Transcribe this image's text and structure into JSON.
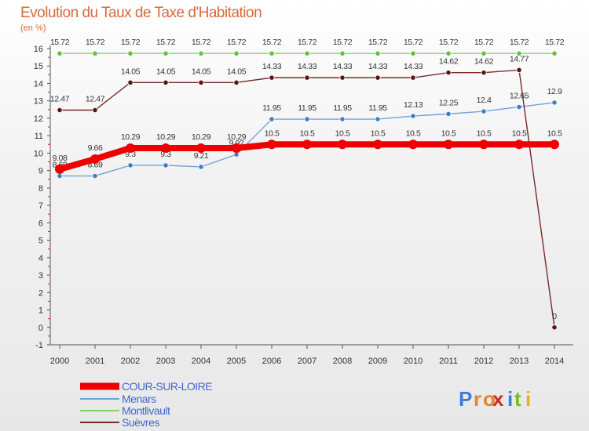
{
  "chart_data": {
    "type": "line",
    "title": "Evolution du Taux de Taxe d'Habitation",
    "unit_label": "(en %)",
    "xlabel": "",
    "ylabel": "",
    "categories": [
      "2000",
      "2001",
      "2002",
      "2003",
      "2004",
      "2005",
      "2006",
      "2007",
      "2008",
      "2009",
      "2010",
      "2011",
      "2012",
      "2013",
      "2014"
    ],
    "y_ticks": [
      "-1",
      "0",
      "1",
      "2",
      "3",
      "4",
      "5",
      "6",
      "7",
      "8",
      "9",
      "10",
      "11",
      "12",
      "13",
      "14",
      "15",
      "16"
    ],
    "ylim": [
      -1,
      16
    ],
    "series": [
      {
        "name": "COUR-SUR-LOIRE",
        "color": "#ee0000",
        "thick": true,
        "values": [
          9.08,
          9.66,
          10.29,
          10.29,
          10.29,
          10.29,
          10.5,
          10.5,
          10.5,
          10.5,
          10.5,
          10.5,
          10.5,
          10.5,
          10.5
        ],
        "labels": [
          "9.08",
          "9.66",
          "10.29",
          "10.29",
          "10.29",
          "10.29",
          "10.5",
          "10.5",
          "10.5",
          "10.5",
          "10.5",
          "10.5",
          "10.5",
          "10.5",
          "10.5"
        ]
      },
      {
        "name": "Menars",
        "color": "#6fa3d6",
        "marker": "#3c7fc4",
        "values": [
          8.69,
          8.69,
          9.3,
          9.3,
          9.21,
          9.92,
          11.95,
          11.95,
          11.95,
          11.95,
          12.13,
          12.25,
          12.4,
          12.65,
          12.9
        ],
        "labels": [
          "8.69",
          "8.69",
          "9.3",
          "9.3",
          "9.21",
          "9.92",
          "11.95",
          "11.95",
          "11.95",
          "11.95",
          "12.13",
          "12.25",
          "12.4",
          "12.65",
          "12.9"
        ]
      },
      {
        "name": "Montlivault",
        "color": "#88d060",
        "marker": "#66c040",
        "values": [
          15.72,
          15.72,
          15.72,
          15.72,
          15.72,
          15.72,
          15.72,
          15.72,
          15.72,
          15.72,
          15.72,
          15.72,
          15.72,
          15.72,
          15.72
        ],
        "labels": [
          "15.72",
          "15.72",
          "15.72",
          "15.72",
          "15.72",
          "15.72",
          "15.72",
          "15.72",
          "15.72",
          "15.72",
          "15.72",
          "15.72",
          "15.72",
          "15.72",
          "15.72"
        ]
      },
      {
        "name": "Suèvres",
        "color": "#7a2a2a",
        "marker": "#5a1414",
        "values": [
          12.47,
          12.47,
          14.05,
          14.05,
          14.05,
          14.05,
          14.33,
          14.33,
          14.33,
          14.33,
          14.33,
          14.62,
          14.62,
          14.77,
          0
        ],
        "labels": [
          "12.47",
          "12.47",
          "14.05",
          "14.05",
          "14.05",
          "14.05",
          "14.33",
          "14.33",
          "14.33",
          "14.33",
          "14.33",
          "14.62",
          "14.62",
          "14.77",
          "0"
        ]
      }
    ],
    "legend": [
      "COUR-SUR-LOIRE",
      "Menars",
      "Montlivault",
      "Suèvres"
    ],
    "legend_position": "bottom-left",
    "grid": false
  },
  "brand": {
    "text": "Proxiti",
    "letters": [
      "P",
      "r",
      "o",
      "x",
      "i",
      "t",
      "i"
    ]
  }
}
